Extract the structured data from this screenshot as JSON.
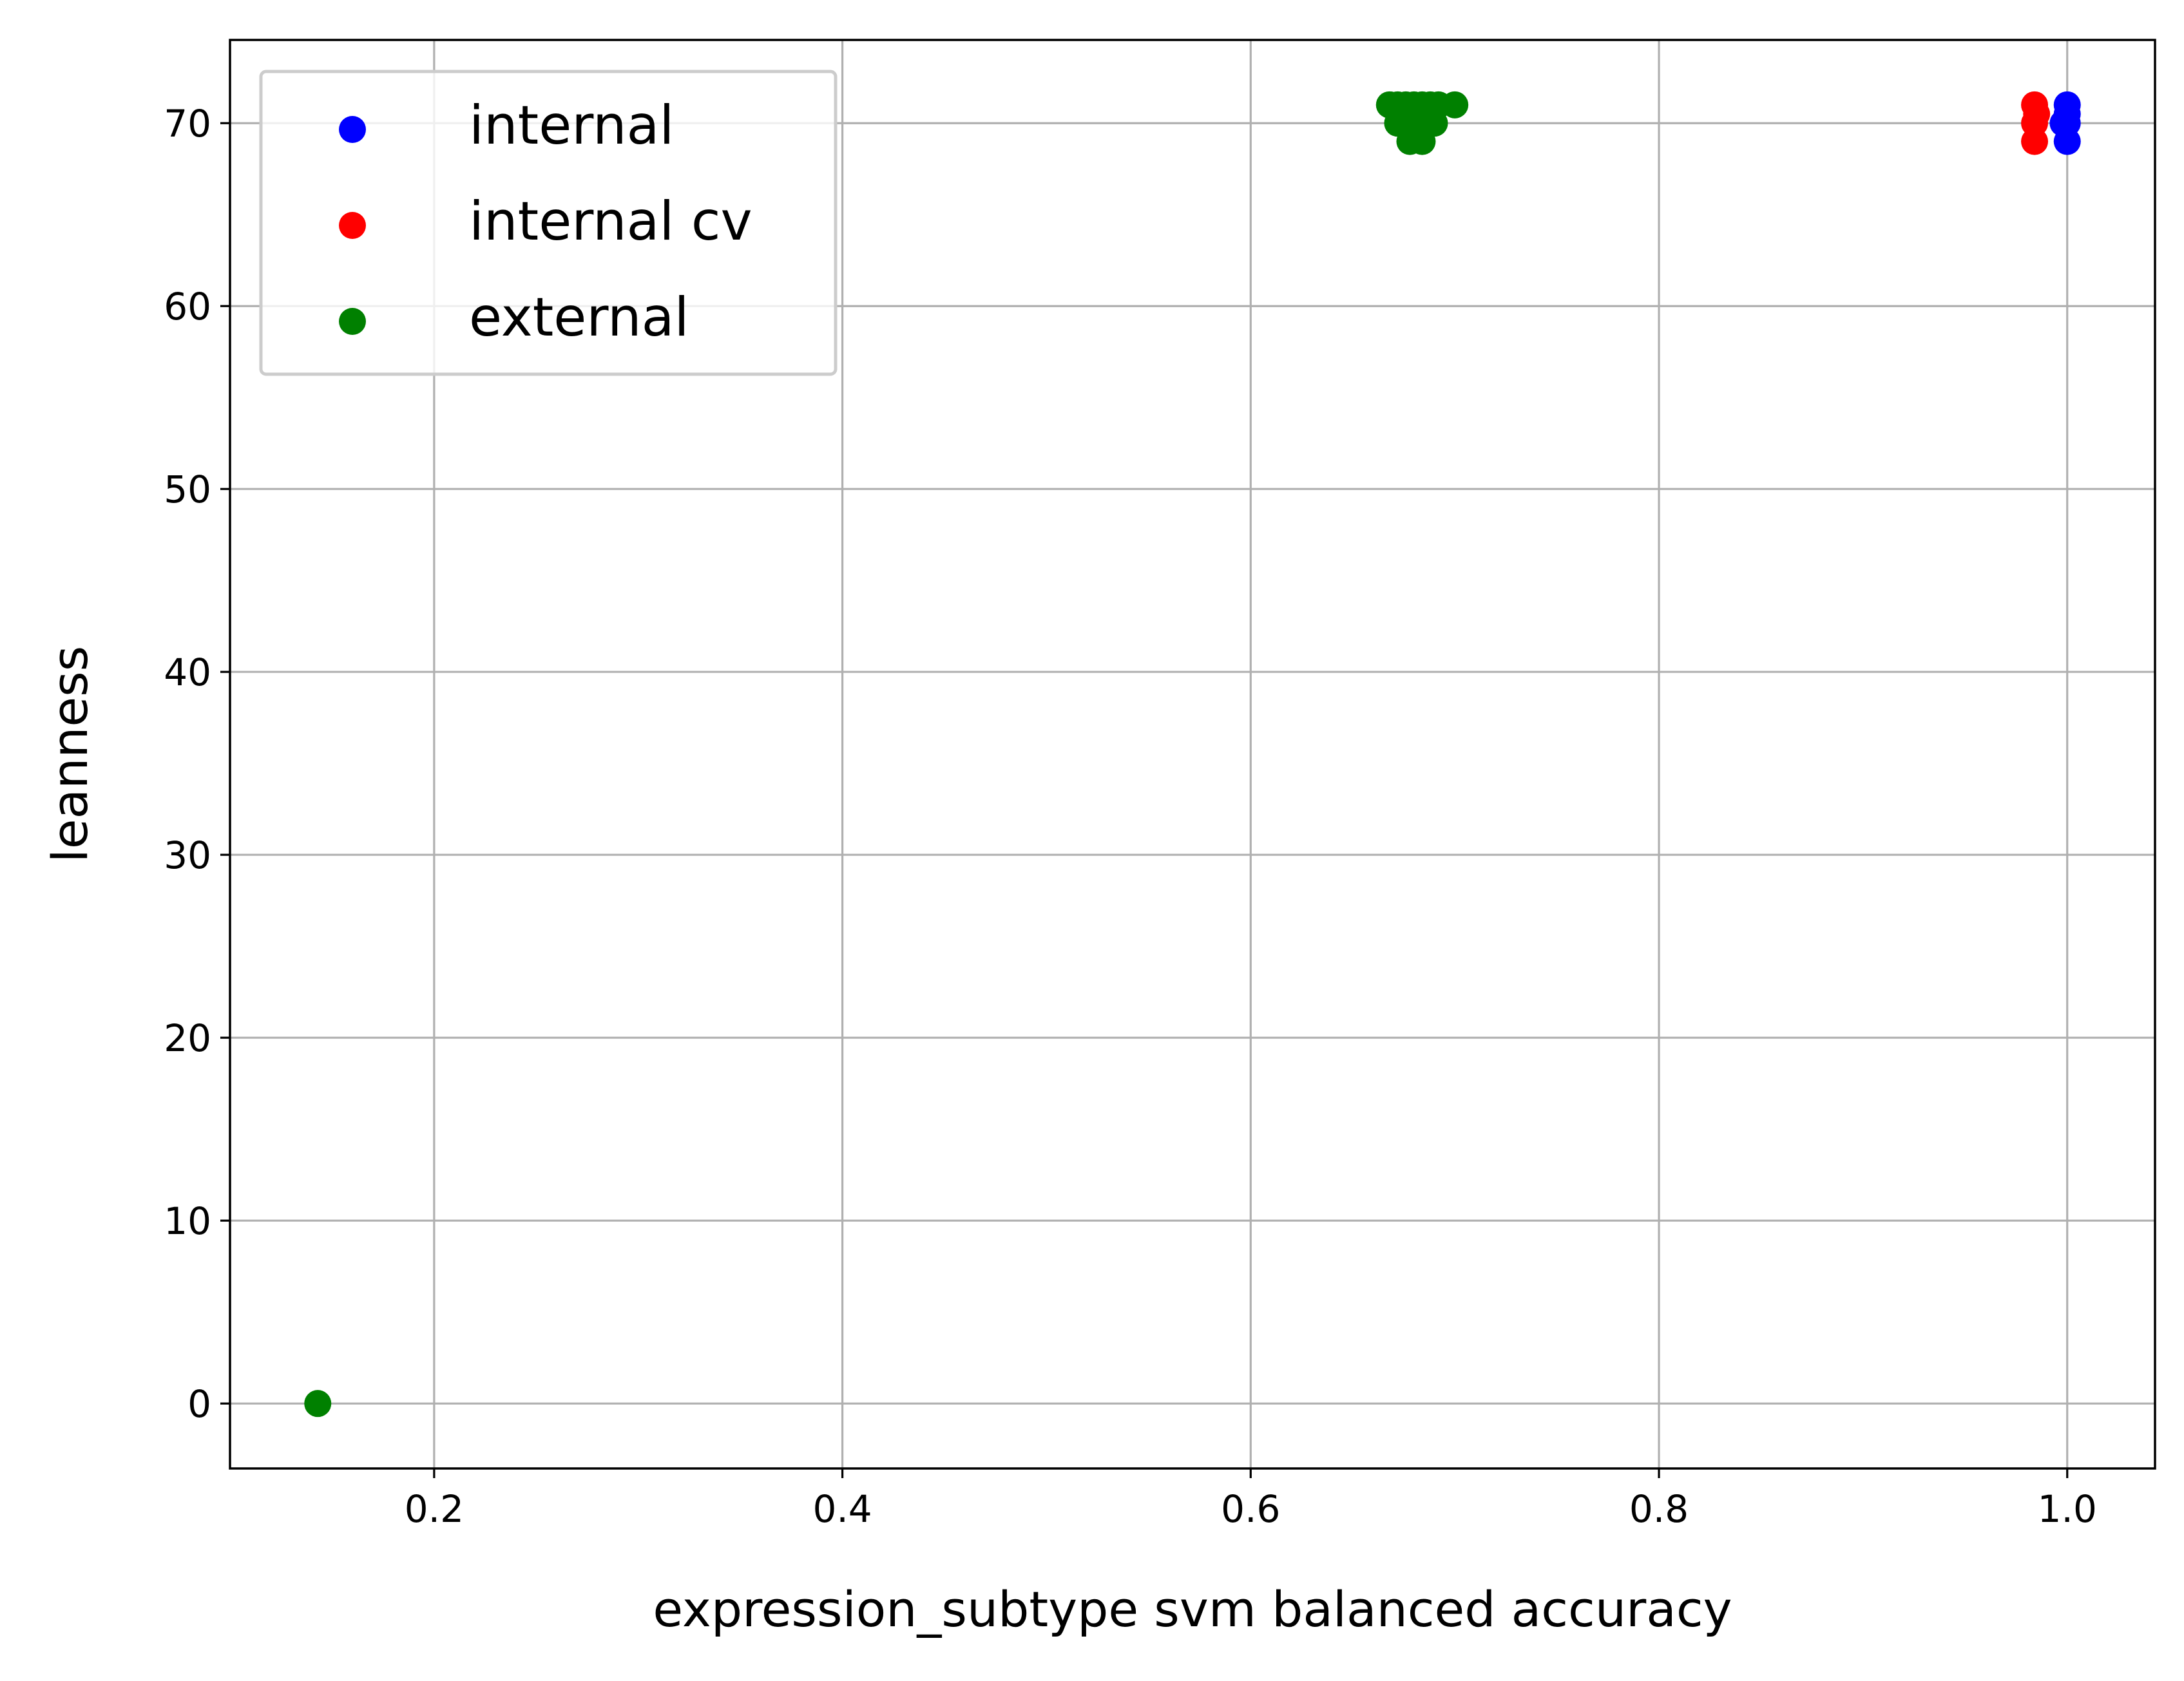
{
  "chart_data": {
    "type": "scatter",
    "title": "",
    "xlabel": "expression_subtype svm balanced accuracy",
    "ylabel": "leanness",
    "xlim": [
      0.1,
      1.043
    ],
    "ylim": [
      -3.55,
      74.55
    ],
    "xticks": [
      0.2,
      0.4,
      0.6,
      0.8,
      1.0
    ],
    "xtick_labels": [
      "0.2",
      "0.4",
      "0.6",
      "0.8",
      "1.0"
    ],
    "yticks": [
      0,
      10,
      20,
      30,
      40,
      50,
      60,
      70
    ],
    "ytick_labels": [
      "0",
      "10",
      "20",
      "30",
      "40",
      "50",
      "60",
      "70"
    ],
    "grid": true,
    "legend": {
      "placement": "upper left"
    },
    "series": [
      {
        "name": "internal",
        "color": "#0000ff",
        "points": [
          {
            "x": 1.0,
            "y": 71
          },
          {
            "x": 1.0,
            "y": 70
          },
          {
            "x": 1.0,
            "y": 69
          },
          {
            "x": 0.998,
            "y": 70
          },
          {
            "x": 1.0,
            "y": 70.5
          }
        ]
      },
      {
        "name": "internal cv",
        "color": "#ff0000",
        "points": [
          {
            "x": 0.984,
            "y": 71
          },
          {
            "x": 0.984,
            "y": 70
          },
          {
            "x": 0.984,
            "y": 69
          },
          {
            "x": 0.985,
            "y": 70.5
          }
        ]
      },
      {
        "name": "external",
        "color": "#008000",
        "points": [
          {
            "x": 0.143,
            "y": 0
          },
          {
            "x": 0.668,
            "y": 71
          },
          {
            "x": 0.672,
            "y": 71
          },
          {
            "x": 0.676,
            "y": 71
          },
          {
            "x": 0.68,
            "y": 71
          },
          {
            "x": 0.684,
            "y": 71
          },
          {
            "x": 0.688,
            "y": 71
          },
          {
            "x": 0.692,
            "y": 71
          },
          {
            "x": 0.7,
            "y": 71
          },
          {
            "x": 0.672,
            "y": 70
          },
          {
            "x": 0.678,
            "y": 70
          },
          {
            "x": 0.684,
            "y": 70
          },
          {
            "x": 0.69,
            "y": 70
          },
          {
            "x": 0.678,
            "y": 69
          },
          {
            "x": 0.684,
            "y": 69
          },
          {
            "x": 0.675,
            "y": 70.5
          },
          {
            "x": 0.686,
            "y": 70.5
          }
        ]
      }
    ]
  }
}
